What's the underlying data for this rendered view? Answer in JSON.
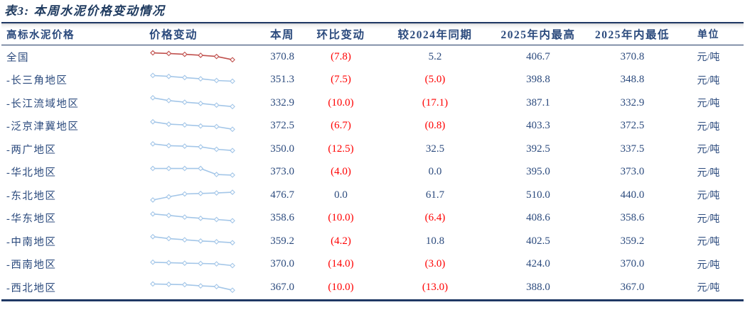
{
  "page": {
    "title": "表3:  本周水泥价格变动情况"
  },
  "colors": {
    "title_navy": "#1e3a5f",
    "text_navy": "#2b4a7d",
    "negative_red": "#ff0000",
    "border_navy": "#1f3864",
    "spark_blue": "#a3c6e8",
    "spark_red": "#c0504d"
  },
  "table": {
    "headers": {
      "name": "高标水泥价格",
      "spark": "价格变动",
      "week": "本周",
      "wow": "环比变动",
      "yoy": "较2024年同期",
      "high": "2025年内最高",
      "low": "2025年内最低",
      "unit": "单位"
    },
    "rows": [
      {
        "name": "全国",
        "week": "370.8",
        "wow": "(7.8)",
        "yoy": "5.2",
        "high": "406.7",
        "low": "370.8",
        "unit": "元/吨",
        "spark_color": "red",
        "spark_points": [
          0.85,
          0.8,
          0.73,
          0.65,
          0.55,
          0.28
        ]
      },
      {
        "name": "-长三角地区",
        "week": "351.3",
        "wow": "(7.5)",
        "yoy": "(5.0)",
        "high": "398.8",
        "low": "348.8",
        "unit": "元/吨",
        "spark_color": "blue",
        "spark_points": [
          0.92,
          0.84,
          0.74,
          0.64,
          0.5,
          0.44
        ]
      },
      {
        "name": "-长江流域地区",
        "week": "332.9",
        "wow": "(10.0)",
        "yoy": "(17.1)",
        "high": "387.1",
        "low": "332.9",
        "unit": "元/吨",
        "spark_color": "blue",
        "spark_points": [
          0.95,
          0.72,
          0.58,
          0.48,
          0.34,
          0.22
        ]
      },
      {
        "name": "-泛京津冀地区",
        "week": "372.5",
        "wow": "(6.7)",
        "yoy": "(0.8)",
        "high": "403.3",
        "low": "372.5",
        "unit": "元/吨",
        "spark_color": "blue",
        "spark_points": [
          0.9,
          0.7,
          0.64,
          0.55,
          0.5,
          0.28
        ]
      },
      {
        "name": "-两广地区",
        "week": "350.0",
        "wow": "(12.5)",
        "yoy": "32.5",
        "high": "392.5",
        "low": "337.5",
        "unit": "元/吨",
        "spark_color": "blue",
        "spark_points": [
          0.95,
          0.8,
          0.76,
          0.7,
          0.5,
          0.4
        ]
      },
      {
        "name": "-华北地区",
        "week": "373.0",
        "wow": "(4.0)",
        "yoy": "0.0",
        "high": "395.0",
        "low": "373.0",
        "unit": "元/吨",
        "spark_color": "blue",
        "spark_points": [
          0.85,
          0.85,
          0.85,
          0.85,
          0.35,
          0.3
        ]
      },
      {
        "name": "-东北地区",
        "week": "476.7",
        "wow": "0.0",
        "yoy": "61.7",
        "high": "510.0",
        "low": "440.0",
        "unit": "元/吨",
        "spark_color": "blue",
        "spark_points": [
          0.12,
          0.38,
          0.62,
          0.66,
          0.7,
          0.76
        ]
      },
      {
        "name": "-华东地区",
        "week": "358.6",
        "wow": "(10.0)",
        "yoy": "(6.4)",
        "high": "408.6",
        "low": "358.6",
        "unit": "元/吨",
        "spark_color": "blue",
        "spark_points": [
          0.9,
          0.78,
          0.64,
          0.54,
          0.44,
          0.34
        ]
      },
      {
        "name": "-中南地区",
        "week": "359.2",
        "wow": "(4.2)",
        "yoy": "10.8",
        "high": "402.5",
        "low": "359.2",
        "unit": "元/吨",
        "spark_color": "blue",
        "spark_points": [
          0.9,
          0.74,
          0.64,
          0.54,
          0.48,
          0.4
        ]
      },
      {
        "name": "-西南地区",
        "week": "370.0",
        "wow": "(14.0)",
        "yoy": "(3.0)",
        "high": "424.0",
        "low": "370.0",
        "unit": "元/吨",
        "spark_color": "blue",
        "spark_points": [
          0.72,
          0.68,
          0.64,
          0.62,
          0.58,
          0.44
        ]
      },
      {
        "name": "-西北地区",
        "week": "367.0",
        "wow": "(10.0)",
        "yoy": "(13.0)",
        "high": "388.0",
        "low": "367.0",
        "unit": "元/吨",
        "spark_color": "blue",
        "spark_points": [
          0.8,
          0.77,
          0.74,
          0.64,
          0.58,
          0.28
        ]
      }
    ]
  }
}
